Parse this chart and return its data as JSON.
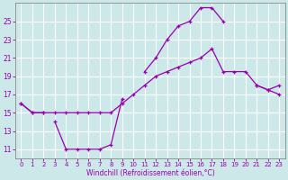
{
  "xlabel": "Windchill (Refroidissement éolien,°C)",
  "bg_color": "#cce8e8",
  "grid_color": "#ffffff",
  "line_color": "#9900aa",
  "hours": [
    0,
    1,
    2,
    3,
    4,
    5,
    6,
    7,
    8,
    9,
    10,
    11,
    12,
    13,
    14,
    15,
    16,
    17,
    18,
    19,
    20,
    21,
    22,
    23
  ],
  "line_top": [
    16.0,
    15.0,
    15.0,
    null,
    null,
    null,
    null,
    null,
    null,
    null,
    null,
    19.5,
    21.0,
    23.0,
    24.5,
    25.0,
    26.5,
    26.5,
    25.0,
    null,
    null,
    18.0,
    17.5,
    18.0
  ],
  "line_mid": [
    16.0,
    15.0,
    15.0,
    15.0,
    15.0,
    15.0,
    15.0,
    15.0,
    15.0,
    16.0,
    17.0,
    18.0,
    19.0,
    19.5,
    20.0,
    20.5,
    21.0,
    22.0,
    19.5,
    19.5,
    19.5,
    18.0,
    17.5,
    17.0
  ],
  "line_bot": [
    null,
    null,
    null,
    14.0,
    11.0,
    11.0,
    11.0,
    11.0,
    11.5,
    16.5,
    null,
    null,
    null,
    null,
    null,
    null,
    null,
    null,
    null,
    null,
    null,
    null,
    null,
    null
  ],
  "ylim": [
    10.0,
    27.0
  ],
  "yticks": [
    11,
    13,
    15,
    17,
    19,
    21,
    23,
    25
  ]
}
